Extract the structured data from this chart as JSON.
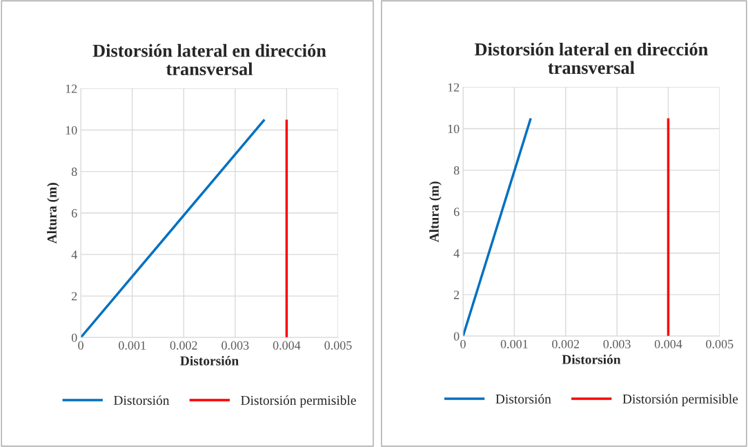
{
  "chart_data": [
    {
      "type": "line",
      "title": "Distorsión lateral en dirección transversal",
      "xlabel": "Distorsión",
      "ylabel": "Altura (m)",
      "xlim": [
        0,
        0.005
      ],
      "xticks": [
        0,
        0.001,
        0.002,
        0.003,
        0.004,
        0.005
      ],
      "ylim": [
        0,
        12
      ],
      "yticks": [
        0,
        2,
        4,
        6,
        8,
        10,
        12
      ],
      "grid": true,
      "legend": "bottom",
      "series": [
        {
          "name": "Distorsión",
          "color": "#0070c0",
          "x": [
            0,
            0.00357
          ],
          "values": [
            0,
            10.5
          ]
        },
        {
          "name": "Distorsión permisible",
          "color": "#ff0000",
          "x": [
            0.004,
            0.004
          ],
          "values": [
            0,
            10.5
          ]
        }
      ]
    },
    {
      "type": "line",
      "title": "Distorsión lateral en dirección transversal",
      "xlabel": "Distorsión",
      "ylabel": "Altura (m)",
      "xlim": [
        0,
        0.005
      ],
      "xticks": [
        0,
        0.001,
        0.002,
        0.003,
        0.004,
        0.005
      ],
      "ylim": [
        0,
        12
      ],
      "yticks": [
        0,
        2,
        4,
        6,
        8,
        10,
        12
      ],
      "grid": true,
      "legend": "bottom",
      "series": [
        {
          "name": "Distorsión",
          "color": "#0070c0",
          "x": [
            0,
            0.00132
          ],
          "values": [
            0,
            10.5
          ]
        },
        {
          "name": "Distorsión permisible",
          "color": "#ff0000",
          "x": [
            0.004,
            0.004
          ],
          "values": [
            0,
            10.5
          ]
        }
      ]
    }
  ]
}
